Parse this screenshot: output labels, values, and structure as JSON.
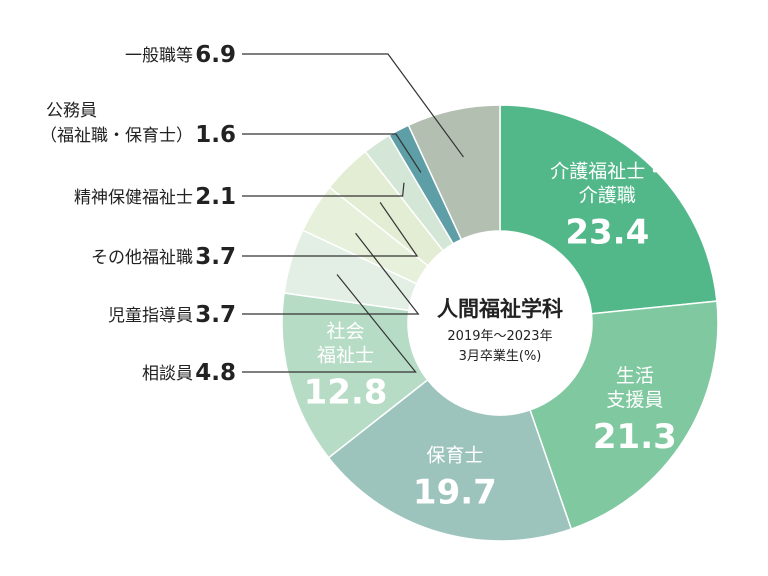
{
  "chart_data": {
    "type": "pie",
    "center_title": "人間福祉学科",
    "center_subtitle_line1": "2019年〜2023年",
    "center_subtitle_line2": "3月卒業生(%)",
    "slices": [
      {
        "label_lines": [
          "介護福祉士・",
          "介護職"
        ],
        "value": 23.4,
        "display": "23.4",
        "color": "#52b88a",
        "label_pos": "inside"
      },
      {
        "label_lines": [
          "生活",
          "支援員"
        ],
        "value": 21.3,
        "display": "21.3",
        "color": "#80c8a0",
        "label_pos": "inside"
      },
      {
        "label_lines": [
          "保育士"
        ],
        "value": 19.7,
        "display": "19.7",
        "color": "#9dc3bd",
        "label_pos": "inside"
      },
      {
        "label_lines": [
          "社会",
          "福祉士"
        ],
        "value": 12.8,
        "display": "12.8",
        "color": "#b7dcc6",
        "label_pos": "inside"
      },
      {
        "label_lines": [
          "相談員"
        ],
        "value": 4.8,
        "display": "4.8",
        "color": "#e3efe4",
        "label_pos": "outside"
      },
      {
        "label_lines": [
          "児童指導員"
        ],
        "value": 3.7,
        "display": "3.7",
        "color": "#e7f0da",
        "label_pos": "outside"
      },
      {
        "label_lines": [
          "その他福祉職"
        ],
        "value": 3.7,
        "display": "3.7",
        "color": "#e3edd4",
        "label_pos": "outside"
      },
      {
        "label_lines": [
          "精神保健福祉士"
        ],
        "value": 2.1,
        "display": "2.1",
        "color": "#d4e6d6",
        "label_pos": "outside"
      },
      {
        "label_lines": [
          "公務員",
          "（福祉職・保育士）"
        ],
        "value": 1.6,
        "display": "1.6",
        "color": "#5e9ea6",
        "label_pos": "outside"
      },
      {
        "label_lines": [
          "一般職等"
        ],
        "value": 6.9,
        "display": "6.9",
        "color": "#b3bfb1",
        "label_pos": "outside"
      }
    ],
    "legend": "none",
    "start": "top, clockwise"
  }
}
